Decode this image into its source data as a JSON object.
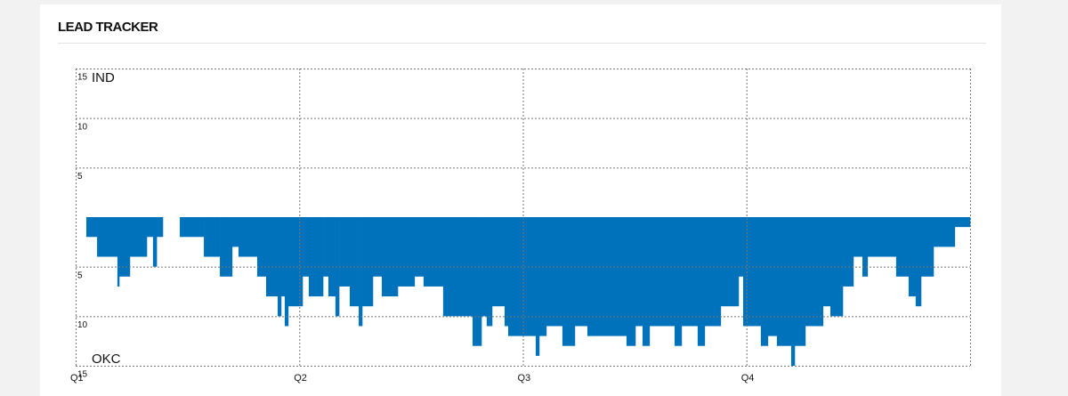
{
  "chart_data": {
    "type": "step-bar",
    "title": "LEAD TRACKER",
    "team_top": "IND",
    "team_bottom": "OKC",
    "color": "#0072bb",
    "grid": true,
    "x": [
      0,
      0.57,
      1.15,
      2.24,
      2.34,
      2.91,
      3.82,
      4.15,
      4.35,
      4.68,
      5.59,
      6.88,
      7.74,
      8.4,
      8.74,
      9.74,
      10.22,
      10.84,
      11.03,
      11.22,
      11.41,
      12.18,
      12.51,
      13.28,
      13.56,
      13.94,
      14.14,
      14.71,
      15.19,
      15.38,
      15.95,
      16.43,
      17.29,
      18.19,
      18.67,
      19.72,
      21.3,
      21.78,
      22.06,
      22.35,
      23.02,
      23.21,
      24.69,
      24.88,
      25.26,
      26.12,
      26.79,
      27.46,
      29.56,
      30.04,
      30.42,
      30.8,
      32.14,
      32.52,
      33.38,
      33.76,
      34.62,
      35.58,
      35.82,
      36.77,
      37.15,
      37.63,
      38.4,
      38.59,
      39.16,
      40.11,
      40.5,
      41.17,
      41.74,
      42.22,
      42.5,
      44.03,
      44.7,
      45.08,
      45.37,
      46.04,
      47.18
    ],
    "values": [
      0,
      -2,
      -4,
      -7,
      -6,
      -4,
      -2,
      -5,
      -2,
      0,
      -2,
      -4,
      -6,
      -3,
      -4,
      -6,
      -8,
      -10,
      -8,
      -11,
      -9,
      -6,
      -8,
      -6,
      -8,
      -10,
      -7,
      -9,
      -11,
      -9,
      -6,
      -8,
      -7,
      -6,
      -7,
      -10,
      -13,
      -10,
      -11,
      -9,
      -11,
      -12,
      -14,
      -12,
      -11,
      -13,
      -11,
      -12,
      -13,
      -11,
      -13,
      -11,
      -13,
      -11,
      -13,
      -11,
      -9,
      -6,
      -11,
      -13,
      -12,
      -13,
      -15,
      -13,
      -11,
      -9,
      -10,
      -7,
      -4,
      -6,
      -4,
      -6,
      -8,
      -9,
      -6,
      -3,
      -1
    ],
    "xlim": [
      0,
      48
    ],
    "xticks": [
      {
        "value": 0,
        "label": "Q1"
      },
      {
        "value": 12,
        "label": "Q2"
      },
      {
        "value": 24,
        "label": "Q3"
      },
      {
        "value": 36,
        "label": "Q4"
      }
    ],
    "ylim": [
      -15,
      15
    ],
    "yticks": [
      15,
      10,
      5,
      {
        "value": -5,
        "label": "5"
      },
      {
        "value": -10,
        "label": "10"
      },
      {
        "value": -15,
        "label": "15"
      }
    ]
  }
}
